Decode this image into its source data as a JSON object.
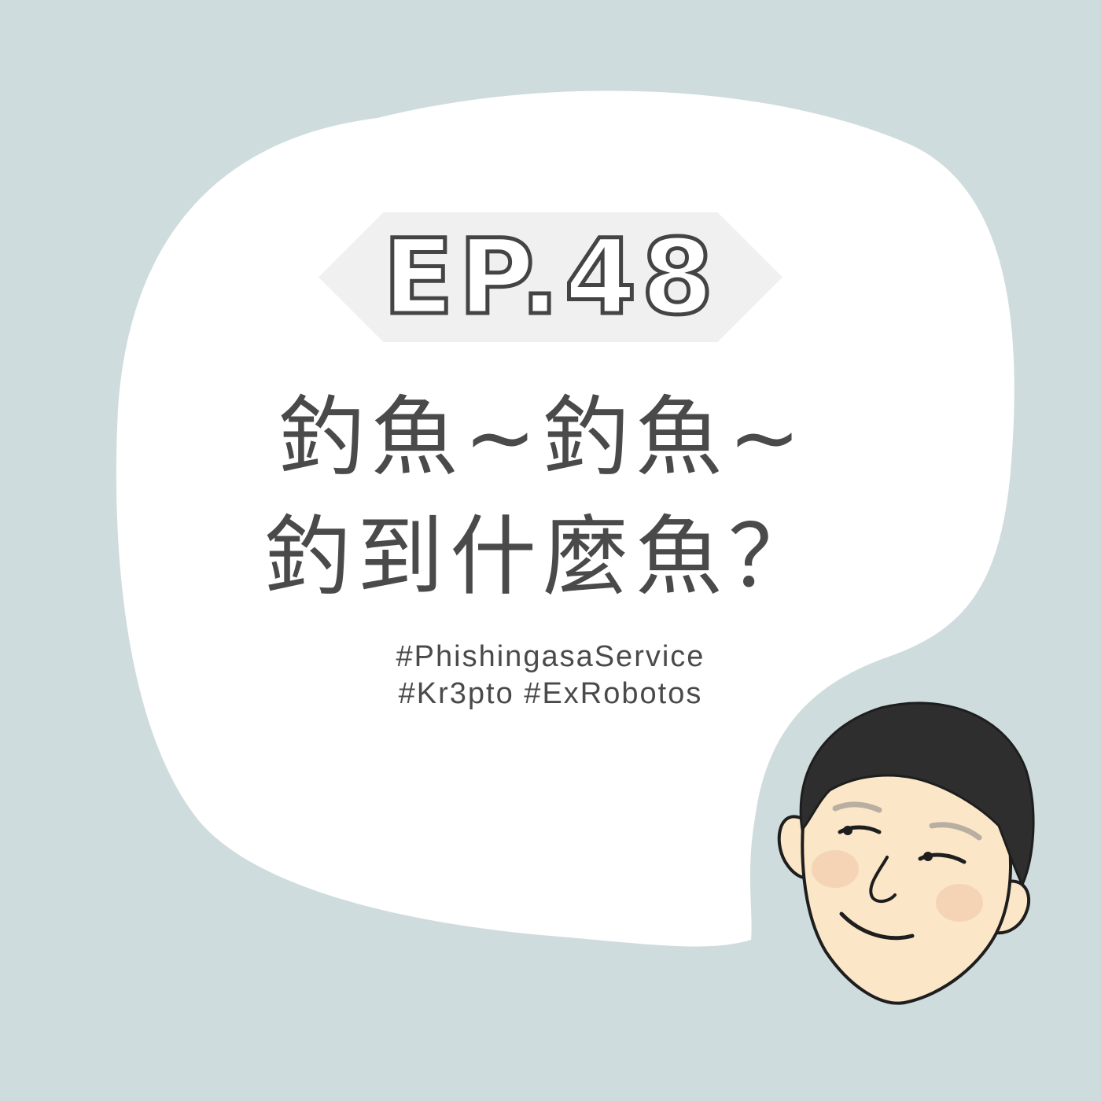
{
  "colors": {
    "background": "#cfdcdd",
    "bubble": "#ffffff",
    "banner": "#f0f0f0",
    "text": "#4a4a4a",
    "hair": "#2e2e2e",
    "skin": "#fbe6c8",
    "cheek": "#f4d2b2"
  },
  "episode": {
    "label": "EP.48"
  },
  "title": {
    "line1": "釣魚~釣魚~",
    "line2": "釣到什麼魚？"
  },
  "tags": {
    "line1": "#PhishingasaService",
    "line2": "#Kr3pto #ExRobotos"
  },
  "avatar": {
    "icon": "host-face-illustration"
  }
}
